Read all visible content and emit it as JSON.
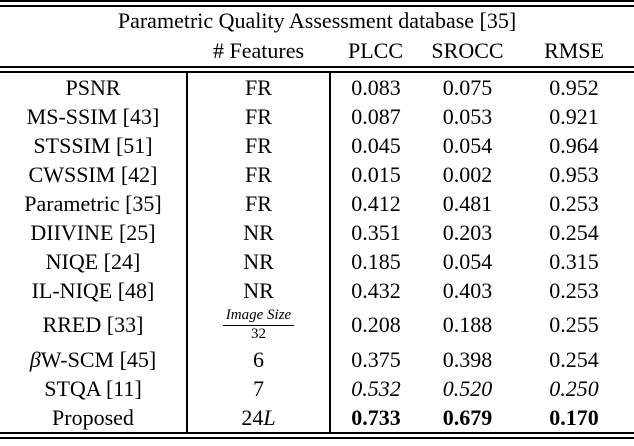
{
  "table": {
    "title": "Parametric Quality Assessment database [35]",
    "header": {
      "method": "",
      "features": "# Features",
      "plcc": "PLCC",
      "srocc": "SROCC",
      "rmse": "RMSE"
    },
    "rows": [
      {
        "method": {
          "text": "PSNR"
        },
        "features": {
          "type": "text",
          "value": "FR"
        },
        "values": [
          "0.083",
          "0.075",
          "0.952"
        ],
        "emphasis": "normal"
      },
      {
        "method": {
          "text": "MS-SSIM [43]"
        },
        "features": {
          "type": "text",
          "value": "FR"
        },
        "values": [
          "0.087",
          "0.053",
          "0.921"
        ],
        "emphasis": "normal"
      },
      {
        "method": {
          "text": "STSSIM [51]"
        },
        "features": {
          "type": "text",
          "value": "FR"
        },
        "values": [
          "0.045",
          "0.054",
          "0.964"
        ],
        "emphasis": "normal"
      },
      {
        "method": {
          "text": "CWSSIM [42]"
        },
        "features": {
          "type": "text",
          "value": "FR"
        },
        "values": [
          "0.015",
          "0.002",
          "0.953"
        ],
        "emphasis": "normal"
      },
      {
        "method": {
          "text": "Parametric [35]"
        },
        "features": {
          "type": "text",
          "value": "FR"
        },
        "values": [
          "0.412",
          "0.481",
          "0.253"
        ],
        "emphasis": "normal"
      },
      {
        "method": {
          "text": "DIIVINE [25]"
        },
        "features": {
          "type": "text",
          "value": "NR"
        },
        "values": [
          "0.351",
          "0.203",
          "0.254"
        ],
        "emphasis": "normal"
      },
      {
        "method": {
          "text": "NIQE [24]"
        },
        "features": {
          "type": "text",
          "value": "NR"
        },
        "values": [
          "0.185",
          "0.054",
          "0.315"
        ],
        "emphasis": "normal"
      },
      {
        "method": {
          "text": "IL-NIQE [48]"
        },
        "features": {
          "type": "text",
          "value": "NR"
        },
        "values": [
          "0.432",
          "0.403",
          "0.253"
        ],
        "emphasis": "normal"
      },
      {
        "method": {
          "text": "RRED [33]"
        },
        "features": {
          "type": "fraction",
          "numerator": "Image Size",
          "denominator": "32"
        },
        "values": [
          "0.208",
          "0.188",
          "0.255"
        ],
        "emphasis": "normal"
      },
      {
        "method": {
          "italic": "β",
          "text": "W-SCM [45]"
        },
        "features": {
          "type": "text",
          "value": "6"
        },
        "values": [
          "0.375",
          "0.398",
          "0.254"
        ],
        "emphasis": "normal"
      },
      {
        "method": {
          "text": "STQA [11]"
        },
        "features": {
          "type": "text",
          "value": "7"
        },
        "values": [
          "0.532",
          "0.520",
          "0.250"
        ],
        "emphasis": "italic"
      },
      {
        "method": {
          "text": "Proposed"
        },
        "features": {
          "type": "math",
          "value": "24",
          "italic": "L"
        },
        "values": [
          "0.733",
          "0.679",
          "0.170"
        ],
        "emphasis": "bold"
      }
    ]
  },
  "colors": {
    "text": "#000000",
    "background": "#ffffff",
    "rule": "#000000"
  }
}
